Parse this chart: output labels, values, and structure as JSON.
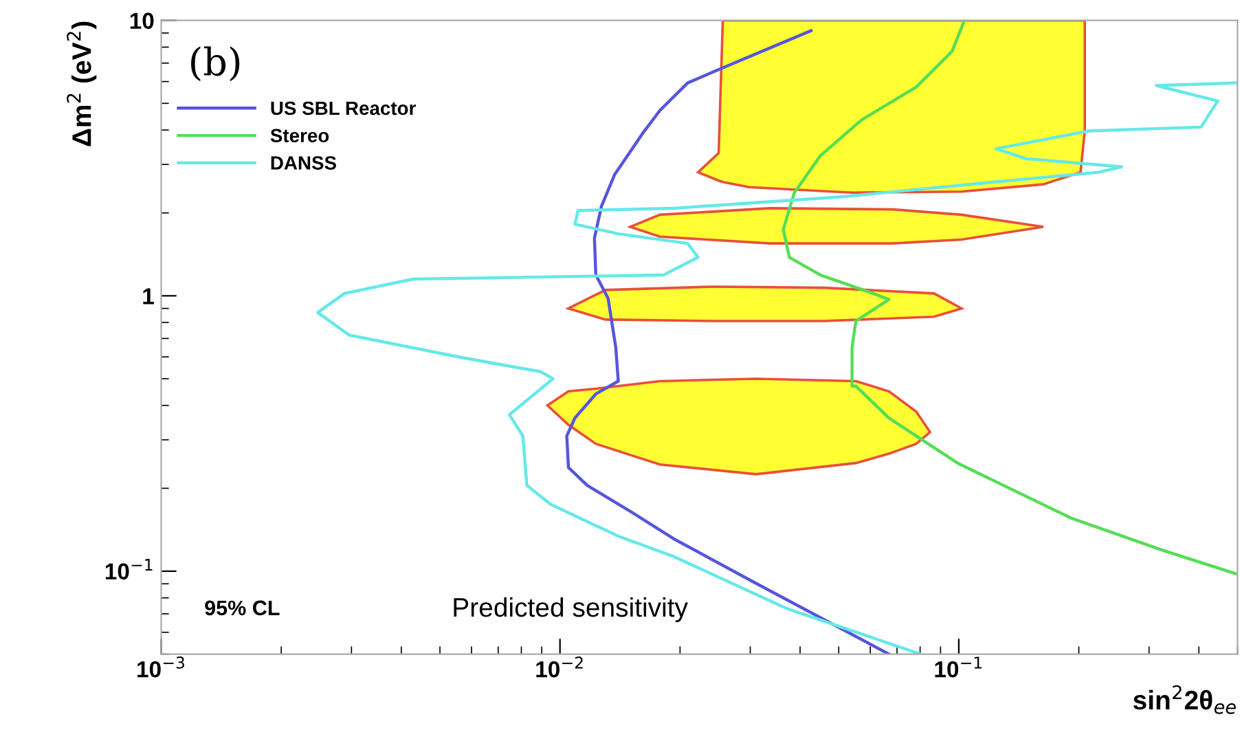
{
  "chart_data": {
    "type": "line",
    "xlabel": "sin$^{2}$2θ$_{ee}$",
    "ylabel": "Δm$^{2}$ (eV$^{2}$)",
    "log": "xy",
    "xlim": [
      0.001,
      0.5
    ],
    "ylim": [
      0.05,
      10
    ],
    "xticks": [
      {
        "value": 0.001,
        "label": "10$^{−3}$"
      },
      {
        "value": 0.01,
        "label": "10$^{−2}$"
      },
      {
        "value": 0.1,
        "label": "10$^{−1}$"
      }
    ],
    "yticks": [
      {
        "value": 0.1,
        "label": "10$^{−1}$"
      },
      1,
      10
    ],
    "grid": false,
    "legend": "top left",
    "annotations": [
      "(b)",
      "95% CL",
      "Predicted sensitivity"
    ],
    "series": [
      {
        "type": "area",
        "color": "#ffff33",
        "x": [
          0.0222,
          0.025,
          0.0256,
          0.0298,
          0.054,
          0.1016,
          0.163,
          0.202,
          0.207,
          0.207,
          0.202,
          0.163,
          0.1016,
          0.054,
          0.0298,
          0.0256,
          0.025
        ],
        "values": [
          2.81,
          2.62,
          2.59,
          2.48,
          2.37,
          2.39,
          2.54,
          2.81,
          3.97,
          10,
          10,
          10,
          10,
          10,
          10,
          10,
          3.3
        ]
      },
      {
        "type": "area",
        "color": "#ffff33",
        "x": [
          0.015,
          0.0178,
          0.0336,
          0.0684,
          0.1016,
          0.163,
          0.1016,
          0.0684,
          0.0336,
          0.0178
        ],
        "values": [
          1.78,
          1.64,
          1.55,
          1.55,
          1.6,
          1.78,
          1.97,
          2.06,
          2.08,
          1.97
        ]
      },
      {
        "type": "area",
        "color": "#ffff33",
        "x": [
          0.0105,
          0.013,
          0.0244,
          0.046,
          0.0867,
          0.1016,
          0.0867,
          0.046,
          0.0244,
          0.013
        ],
        "values": [
          0.9,
          0.82,
          0.81,
          0.81,
          0.84,
          0.9,
          1.02,
          1.07,
          1.08,
          1.05
        ]
      },
      {
        "type": "area",
        "color": "#ffff33",
        "x": [
          0.0093,
          0.0105,
          0.0123,
          0.0178,
          0.031,
          0.0552,
          0.0668,
          0.0782,
          0.0847,
          0.0782,
          0.0668,
          0.0552,
          0.031,
          0.0178,
          0.0123,
          0.0105
        ],
        "values": [
          0.4,
          0.34,
          0.29,
          0.244,
          0.225,
          0.247,
          0.267,
          0.29,
          0.32,
          0.38,
          0.45,
          0.49,
          0.5,
          0.49,
          0.46,
          0.45
        ]
      },
      {
        "name": "US SBL Reactor",
        "color": "#5555dd",
        "x": [
          0.0426,
          0.0251,
          0.0209,
          0.0178,
          0.0161,
          0.0137,
          0.0127,
          0.0122,
          0.0123,
          0.0132,
          0.0138,
          0.014,
          0.0123,
          0.0109,
          0.0104,
          0.0105,
          0.0117,
          0.0152,
          0.0193,
          0.0303,
          0.0668
        ],
        "values": [
          9.18,
          6.65,
          5.93,
          4.71,
          3.88,
          2.75,
          2.11,
          1.62,
          1.19,
          0.98,
          0.65,
          0.49,
          0.44,
          0.36,
          0.31,
          0.238,
          0.205,
          0.163,
          0.131,
          0.092,
          0.05
        ]
      },
      {
        "name": "Stereo",
        "color": "#55dd55",
        "x": [
          0.1033,
          0.0962,
          0.0782,
          0.057,
          0.045,
          0.0387,
          0.0363,
          0.0376,
          0.045,
          0.0598,
          0.0668,
          0.0552,
          0.054,
          0.054,
          0.0552,
          0.0668,
          0.0993,
          0.191,
          0.325,
          0.494
        ],
        "values": [
          10,
          7.72,
          5.73,
          4.35,
          3.23,
          2.37,
          1.74,
          1.38,
          1.19,
          1.03,
          0.97,
          0.81,
          0.65,
          0.47,
          0.47,
          0.36,
          0.247,
          0.156,
          0.119,
          0.098
        ]
      },
      {
        "name": "DANSS",
        "color": "#66e8e8",
        "x": [
          0.494,
          0.313,
          0.446,
          0.405,
          0.212,
          0.124,
          0.147,
          0.256,
          0.224,
          0.113,
          0.051,
          0.0193,
          0.0111,
          0.0109,
          0.014,
          0.0209,
          0.0222,
          0.0182,
          0.00428,
          0.00288,
          0.00247,
          0.00296,
          0.00557,
          0.00896,
          0.0096,
          0.00747,
          0.00807,
          0.00826,
          0.00946,
          0.014,
          0.0193,
          0.0372,
          0.0802
        ],
        "values": [
          5.93,
          5.8,
          5.1,
          4.1,
          3.97,
          3.42,
          3.15,
          2.94,
          2.81,
          2.56,
          2.29,
          2.08,
          2.04,
          1.82,
          1.68,
          1.55,
          1.38,
          1.19,
          1.15,
          1.02,
          0.87,
          0.72,
          0.6,
          0.53,
          0.5,
          0.37,
          0.31,
          0.205,
          0.175,
          0.134,
          0.113,
          0.073,
          0.05
        ]
      }
    ]
  }
}
